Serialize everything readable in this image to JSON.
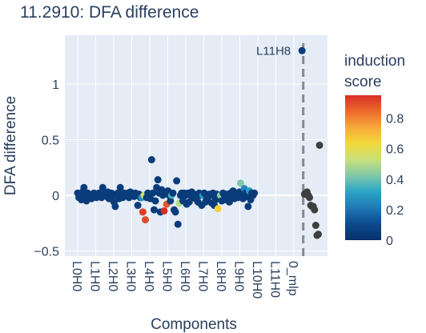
{
  "chart_data": {
    "type": "scatter",
    "title": "11.2910: DFA difference",
    "xlabel": "Components",
    "ylabel": "DFA difference",
    "ylim": [
      -0.5,
      1.35
    ],
    "yticks": [
      -0.5,
      0,
      0.5,
      1
    ],
    "ytick_labels": [
      "−0.5",
      "0",
      "0.5",
      "1"
    ],
    "x_categories": [
      "L0H0",
      "L1H0",
      "L2H0",
      "L3H0",
      "L4H0",
      "L5H0",
      "L6H0",
      "L7H0",
      "L8H0",
      "L9H0",
      "L10H0",
      "L11H0",
      "0_mlp"
    ],
    "grid": true,
    "colorbar": {
      "title_lines": [
        "induction",
        "score"
      ],
      "range": [
        0,
        0.95
      ],
      "ticks": [
        0,
        0.2,
        0.4,
        0.6,
        0.8
      ],
      "tick_labels": [
        "0",
        "0.2",
        "0.4",
        "0.6",
        "0.8"
      ],
      "colorscale": [
        "#08306b",
        "#0d4a8c",
        "#1f78b4",
        "#2aa5c6",
        "#7fc8a9",
        "#c8e07a",
        "#f2d93a",
        "#f7a93a",
        "#ec6a2c",
        "#d62f26"
      ]
    },
    "divider_line_x": 180,
    "annotations": [
      {
        "text": "L11H8",
        "x": 179,
        "y": 1.3
      }
    ],
    "head_points": [
      [
        0,
        0.02,
        0.05
      ],
      [
        1,
        -0.02,
        0.05
      ],
      [
        2,
        0.0,
        0.05
      ],
      [
        3,
        -0.04,
        0.05
      ],
      [
        4,
        0.03,
        0.05
      ],
      [
        5,
        0.07,
        0.05
      ],
      [
        6,
        0.0,
        0.05
      ],
      [
        7,
        -0.05,
        0.05
      ],
      [
        8,
        0.02,
        0.05
      ],
      [
        9,
        0.0,
        0.05
      ],
      [
        10,
        -0.02,
        0.05
      ],
      [
        11,
        -0.03,
        0.05
      ],
      [
        12,
        -0.01,
        0.05
      ],
      [
        13,
        0.02,
        0.05
      ],
      [
        14,
        0.01,
        0.05
      ],
      [
        15,
        -0.02,
        0.05
      ],
      [
        16,
        0.0,
        0.05
      ],
      [
        17,
        0.02,
        0.05
      ],
      [
        18,
        0.0,
        0.05
      ],
      [
        19,
        -0.02,
        0.05
      ],
      [
        20,
        0.07,
        0.05
      ],
      [
        21,
        0.0,
        0.05
      ],
      [
        22,
        0.02,
        0.05
      ],
      [
        23,
        -0.01,
        0.05
      ],
      [
        24,
        0.03,
        0.05
      ],
      [
        25,
        -0.03,
        0.05
      ],
      [
        26,
        0.01,
        0.05
      ],
      [
        27,
        0.02,
        0.05
      ],
      [
        28,
        0.0,
        0.05
      ],
      [
        29,
        -0.06,
        0.05
      ],
      [
        30,
        -0.1,
        0.05
      ],
      [
        31,
        0.0,
        0.05
      ],
      [
        32,
        0.02,
        0.05
      ],
      [
        33,
        -0.03,
        0.05
      ],
      [
        34,
        0.07,
        0.05
      ],
      [
        35,
        0.0,
        0.05
      ],
      [
        36,
        -0.02,
        0.05
      ],
      [
        37,
        0.02,
        0.05
      ],
      [
        38,
        0.01,
        0.05
      ],
      [
        39,
        0.0,
        0.05
      ],
      [
        40,
        0.02,
        0.05
      ],
      [
        41,
        -0.02,
        0.05
      ],
      [
        42,
        0.03,
        0.05
      ],
      [
        43,
        0.0,
        0.05
      ],
      [
        44,
        0.01,
        0.05
      ],
      [
        45,
        -0.01,
        0.05
      ],
      [
        46,
        0.02,
        0.05
      ],
      [
        47,
        0.0,
        0.05
      ],
      [
        48,
        -0.09,
        0.05
      ],
      [
        49,
        0.01,
        0.05
      ],
      [
        50,
        -0.02,
        0.05
      ],
      [
        51,
        -0.02,
        0.25
      ],
      [
        52,
        -0.15,
        0.92
      ],
      [
        53,
        0.0,
        0.55
      ],
      [
        54,
        -0.22,
        0.9
      ],
      [
        55,
        -0.02,
        0.05
      ],
      [
        56,
        0.02,
        0.05
      ],
      [
        57,
        0.0,
        0.05
      ],
      [
        58,
        -0.03,
        0.05
      ],
      [
        59,
        0.32,
        0.05
      ],
      [
        60,
        0.02,
        0.05
      ],
      [
        61,
        -0.13,
        0.05
      ],
      [
        62,
        -0.05,
        0.05
      ],
      [
        63,
        0.07,
        0.05
      ],
      [
        64,
        0.14,
        0.05
      ],
      [
        65,
        0.02,
        0.05
      ],
      [
        66,
        -0.15,
        0.05
      ],
      [
        67,
        0.05,
        0.05
      ],
      [
        68,
        0.0,
        0.05
      ],
      [
        69,
        -0.14,
        0.95
      ],
      [
        70,
        0.02,
        0.05
      ],
      [
        71,
        -0.08,
        0.88
      ],
      [
        72,
        0.04,
        0.05
      ],
      [
        73,
        0.0,
        0.05
      ],
      [
        74,
        -0.05,
        0.05
      ],
      [
        75,
        0.0,
        0.35
      ],
      [
        76,
        0.02,
        0.05
      ],
      [
        77,
        -0.13,
        0.05
      ],
      [
        78,
        -0.15,
        0.05
      ],
      [
        79,
        0.13,
        0.05
      ],
      [
        80,
        -0.26,
        0.05
      ],
      [
        81,
        -0.07,
        0.5
      ],
      [
        82,
        0.0,
        0.05
      ],
      [
        83,
        0.02,
        0.05
      ],
      [
        84,
        -0.05,
        0.05
      ],
      [
        85,
        0.02,
        0.05
      ],
      [
        86,
        0.0,
        0.05
      ],
      [
        87,
        -0.08,
        0.05
      ],
      [
        88,
        0.02,
        0.05
      ],
      [
        89,
        -0.06,
        0.05
      ],
      [
        90,
        0.0,
        0.05
      ],
      [
        91,
        0.03,
        0.05
      ],
      [
        92,
        -0.02,
        0.05
      ],
      [
        93,
        0.01,
        0.05
      ],
      [
        94,
        -0.03,
        0.05
      ],
      [
        95,
        0.0,
        0.05
      ],
      [
        96,
        -0.06,
        0.05
      ],
      [
        97,
        0.02,
        0.05
      ],
      [
        98,
        0.0,
        0.05
      ],
      [
        99,
        -0.09,
        0.05
      ],
      [
        100,
        0.0,
        0.3
      ],
      [
        101,
        0.02,
        0.05
      ],
      [
        102,
        -0.06,
        0.05
      ],
      [
        103,
        -0.03,
        0.05
      ],
      [
        104,
        -0.05,
        0.05
      ],
      [
        105,
        0.01,
        0.05
      ],
      [
        106,
        0.0,
        0.05
      ],
      [
        107,
        -0.07,
        0.05
      ],
      [
        108,
        0.02,
        0.05
      ],
      [
        109,
        -0.09,
        0.05
      ],
      [
        110,
        -0.04,
        0.05
      ],
      [
        111,
        0.01,
        0.05
      ],
      [
        112,
        -0.12,
        0.65
      ],
      [
        113,
        -0.02,
        0.05
      ],
      [
        114,
        0.0,
        0.45
      ],
      [
        115,
        -0.05,
        0.05
      ],
      [
        116,
        0.02,
        0.05
      ],
      [
        117,
        0.0,
        0.05
      ],
      [
        118,
        -0.04,
        0.05
      ],
      [
        119,
        0.01,
        0.05
      ],
      [
        120,
        0.0,
        0.05
      ],
      [
        121,
        -0.06,
        0.05
      ],
      [
        122,
        0.02,
        0.05
      ],
      [
        123,
        -0.02,
        0.05
      ],
      [
        124,
        0.04,
        0.05
      ],
      [
        125,
        -0.03,
        0.05
      ],
      [
        126,
        0.0,
        0.05
      ],
      [
        127,
        0.01,
        0.05
      ],
      [
        128,
        -0.02,
        0.05
      ],
      [
        129,
        0.03,
        0.05
      ],
      [
        130,
        0.11,
        0.42
      ],
      [
        131,
        0.0,
        0.05
      ],
      [
        132,
        -0.03,
        0.05
      ],
      [
        133,
        0.06,
        0.25
      ],
      [
        134,
        0.02,
        0.05
      ],
      [
        135,
        -0.01,
        0.05
      ],
      [
        136,
        -0.1,
        0.05
      ],
      [
        137,
        0.04,
        0.3
      ],
      [
        138,
        -0.04,
        0.05
      ],
      [
        139,
        0.02,
        0.05
      ],
      [
        140,
        0.0,
        0.05
      ],
      [
        141,
        0.02,
        0.05
      ],
      [
        179,
        1.3,
        0.05
      ]
    ],
    "mlp_points": [
      [
        181,
        0.01
      ],
      [
        182,
        0.02
      ],
      [
        183,
        0.03
      ],
      [
        184,
        0.0
      ],
      [
        185,
        -0.02
      ],
      [
        186,
        -0.09
      ],
      [
        187,
        -0.1
      ],
      [
        188,
        -0.1
      ],
      [
        189,
        -0.13
      ],
      [
        190,
        -0.27
      ],
      [
        191,
        -0.36
      ],
      [
        192,
        -0.35
      ],
      [
        193,
        0.45
      ]
    ]
  }
}
